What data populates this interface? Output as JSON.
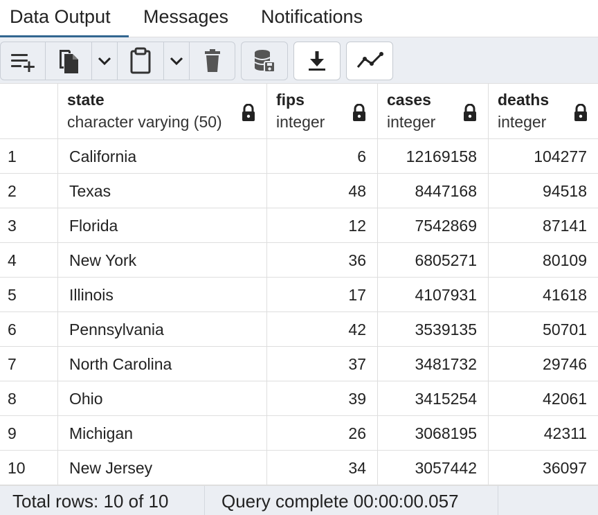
{
  "tabs": [
    {
      "label": "Data Output",
      "active": true
    },
    {
      "label": "Messages",
      "active": false
    },
    {
      "label": "Notifications",
      "active": false
    }
  ],
  "toolbar": {
    "icons": [
      "add-row-icon",
      "copy-icon",
      "chevron-down-icon",
      "paste-icon",
      "chevron-down-icon",
      "delete-icon",
      "save-data-icon",
      "download-icon",
      "graph-visualiser-icon"
    ]
  },
  "columns": [
    {
      "name": "state",
      "type": "character varying (50)"
    },
    {
      "name": "fips",
      "type": "integer"
    },
    {
      "name": "cases",
      "type": "integer"
    },
    {
      "name": "deaths",
      "type": "integer"
    }
  ],
  "rows": [
    {
      "n": "1",
      "state": "California",
      "fips": "6",
      "cases": "12169158",
      "deaths": "104277"
    },
    {
      "n": "2",
      "state": "Texas",
      "fips": "48",
      "cases": "8447168",
      "deaths": "94518"
    },
    {
      "n": "3",
      "state": "Florida",
      "fips": "12",
      "cases": "7542869",
      "deaths": "87141"
    },
    {
      "n": "4",
      "state": "New York",
      "fips": "36",
      "cases": "6805271",
      "deaths": "80109"
    },
    {
      "n": "5",
      "state": "Illinois",
      "fips": "17",
      "cases": "4107931",
      "deaths": "41618"
    },
    {
      "n": "6",
      "state": "Pennsylvania",
      "fips": "42",
      "cases": "3539135",
      "deaths": "50701"
    },
    {
      "n": "7",
      "state": "North Carolina",
      "fips": "37",
      "cases": "3481732",
      "deaths": "29746"
    },
    {
      "n": "8",
      "state": "Ohio",
      "fips": "39",
      "cases": "3415254",
      "deaths": "42061"
    },
    {
      "n": "9",
      "state": "Michigan",
      "fips": "26",
      "cases": "3068195",
      "deaths": "42311"
    },
    {
      "n": "10",
      "state": "New Jersey",
      "fips": "34",
      "cases": "3057442",
      "deaths": "36097"
    }
  ],
  "status": {
    "total_rows": "Total rows: 10 of 10",
    "query": "Query complete 00:00:00.057"
  },
  "colors": {
    "accent": "#326690",
    "toolbar_bg": "#ebeef3",
    "border": "#dedede"
  }
}
